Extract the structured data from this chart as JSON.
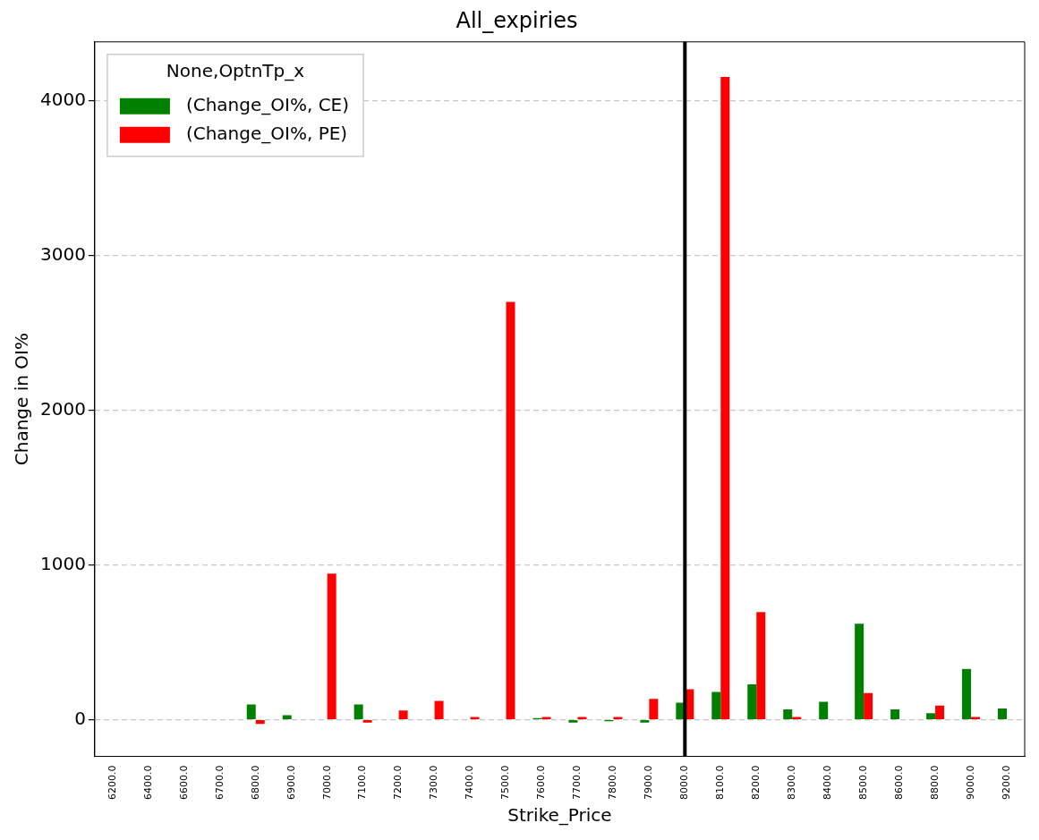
{
  "chart_data": {
    "type": "bar",
    "title": "All_expiries",
    "xlabel": "Strike_Price",
    "ylabel": "Change in OI%",
    "legend_title": "None,OptnTp_x",
    "categories": [
      "6200.0",
      "6400.0",
      "6600.0",
      "6700.0",
      "6800.0",
      "6900.0",
      "7000.0",
      "7100.0",
      "7200.0",
      "7300.0",
      "7400.0",
      "7500.0",
      "7600.0",
      "7700.0",
      "7800.0",
      "7900.0",
      "8000.0",
      "8100.0",
      "8200.0",
      "8300.0",
      "8400.0",
      "8500.0",
      "8600.0",
      "8800.0",
      "9000.0",
      "9200.0"
    ],
    "series": [
      {
        "name": "(Change_OI%, CE)",
        "color": "#008000",
        "values": [
          0,
          null,
          0,
          null,
          98,
          29,
          0,
          98,
          0,
          0,
          null,
          0,
          10,
          -19,
          -10,
          -19,
          110,
          179,
          228,
          66,
          116,
          620,
          66,
          42,
          328,
          73
        ]
      },
      {
        "name": "(Change_OI%, PE)",
        "color": "#ff0000",
        "values": [
          0,
          null,
          0,
          null,
          -27,
          0,
          944,
          -19,
          60,
          122,
          17,
          2700,
          17,
          17,
          17,
          135,
          197,
          4155,
          695,
          17,
          0,
          172,
          0,
          91,
          17,
          0
        ]
      }
    ],
    "ylim": [
      -237,
      4381
    ],
    "yticks": [
      0,
      1000,
      2000,
      3000,
      4000
    ],
    "grid": "y",
    "legend": "top left",
    "ref_lines": [
      {
        "axis": "x",
        "value": "8000.0",
        "color": "#000000"
      }
    ]
  }
}
